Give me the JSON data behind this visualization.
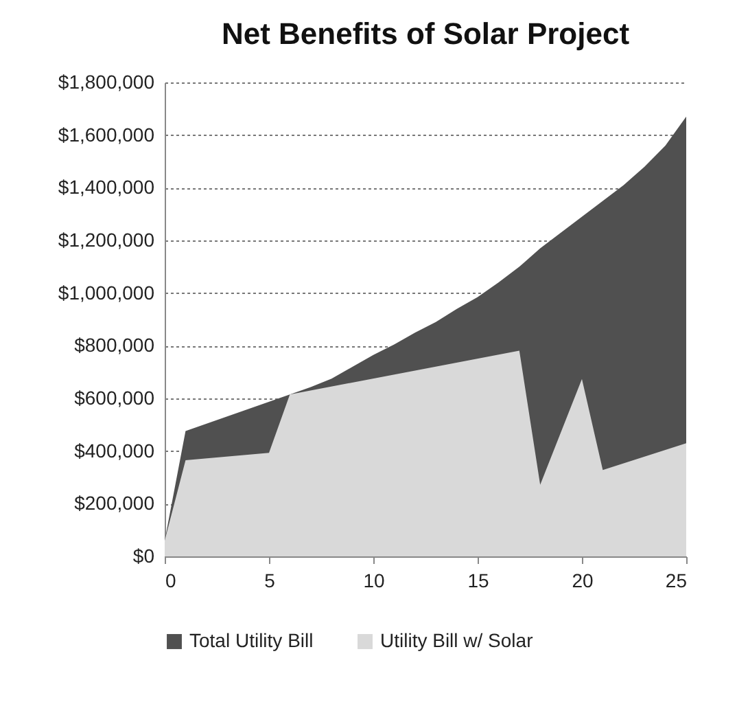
{
  "chart_data": {
    "type": "area",
    "title": "Net Benefits of Solar Project",
    "series": [
      {
        "name": "Total Utility Bill",
        "color": "#505050",
        "x": [
          0,
          1,
          6,
          7,
          8,
          9,
          10,
          11,
          12,
          13,
          14,
          15,
          16,
          17,
          18,
          19,
          20,
          21,
          22,
          23,
          24,
          25
        ],
        "values": [
          60000,
          476000,
          615000,
          643000,
          675000,
          720000,
          765000,
          805000,
          850000,
          890000,
          940000,
          985000,
          1040000,
          1100000,
          1170000,
          1230000,
          1290000,
          1350000,
          1410000,
          1480000,
          1560000,
          1670000
        ]
      },
      {
        "name": "Utility Bill w/ Solar",
        "color": "#d9d9d9",
        "x": [
          0,
          1,
          5,
          6,
          17,
          18,
          20,
          21,
          25
        ],
        "values": [
          60000,
          365000,
          393000,
          615000,
          781000,
          272000,
          674000,
          328000,
          430000
        ]
      }
    ],
    "xlim": [
      0,
      25
    ],
    "xticks": [
      0,
      5,
      10,
      15,
      20,
      25
    ],
    "ylim": [
      0,
      1800000
    ],
    "yticks": [
      {
        "value": 0,
        "label": "$0"
      },
      {
        "value": 200000,
        "label": "$200,000"
      },
      {
        "value": 400000,
        "label": "$400,000"
      },
      {
        "value": 600000,
        "label": "$600,000"
      },
      {
        "value": 800000,
        "label": "$800,000"
      },
      {
        "value": 1000000,
        "label": "$1,000,000"
      },
      {
        "value": 1200000,
        "label": "$1,200,000"
      },
      {
        "value": 1400000,
        "label": "$1,400,000"
      },
      {
        "value": 1600000,
        "label": "$1,600,000"
      },
      {
        "value": 1800000,
        "label": "$1,800,000"
      }
    ],
    "grid": "y",
    "legend": "bottom"
  }
}
